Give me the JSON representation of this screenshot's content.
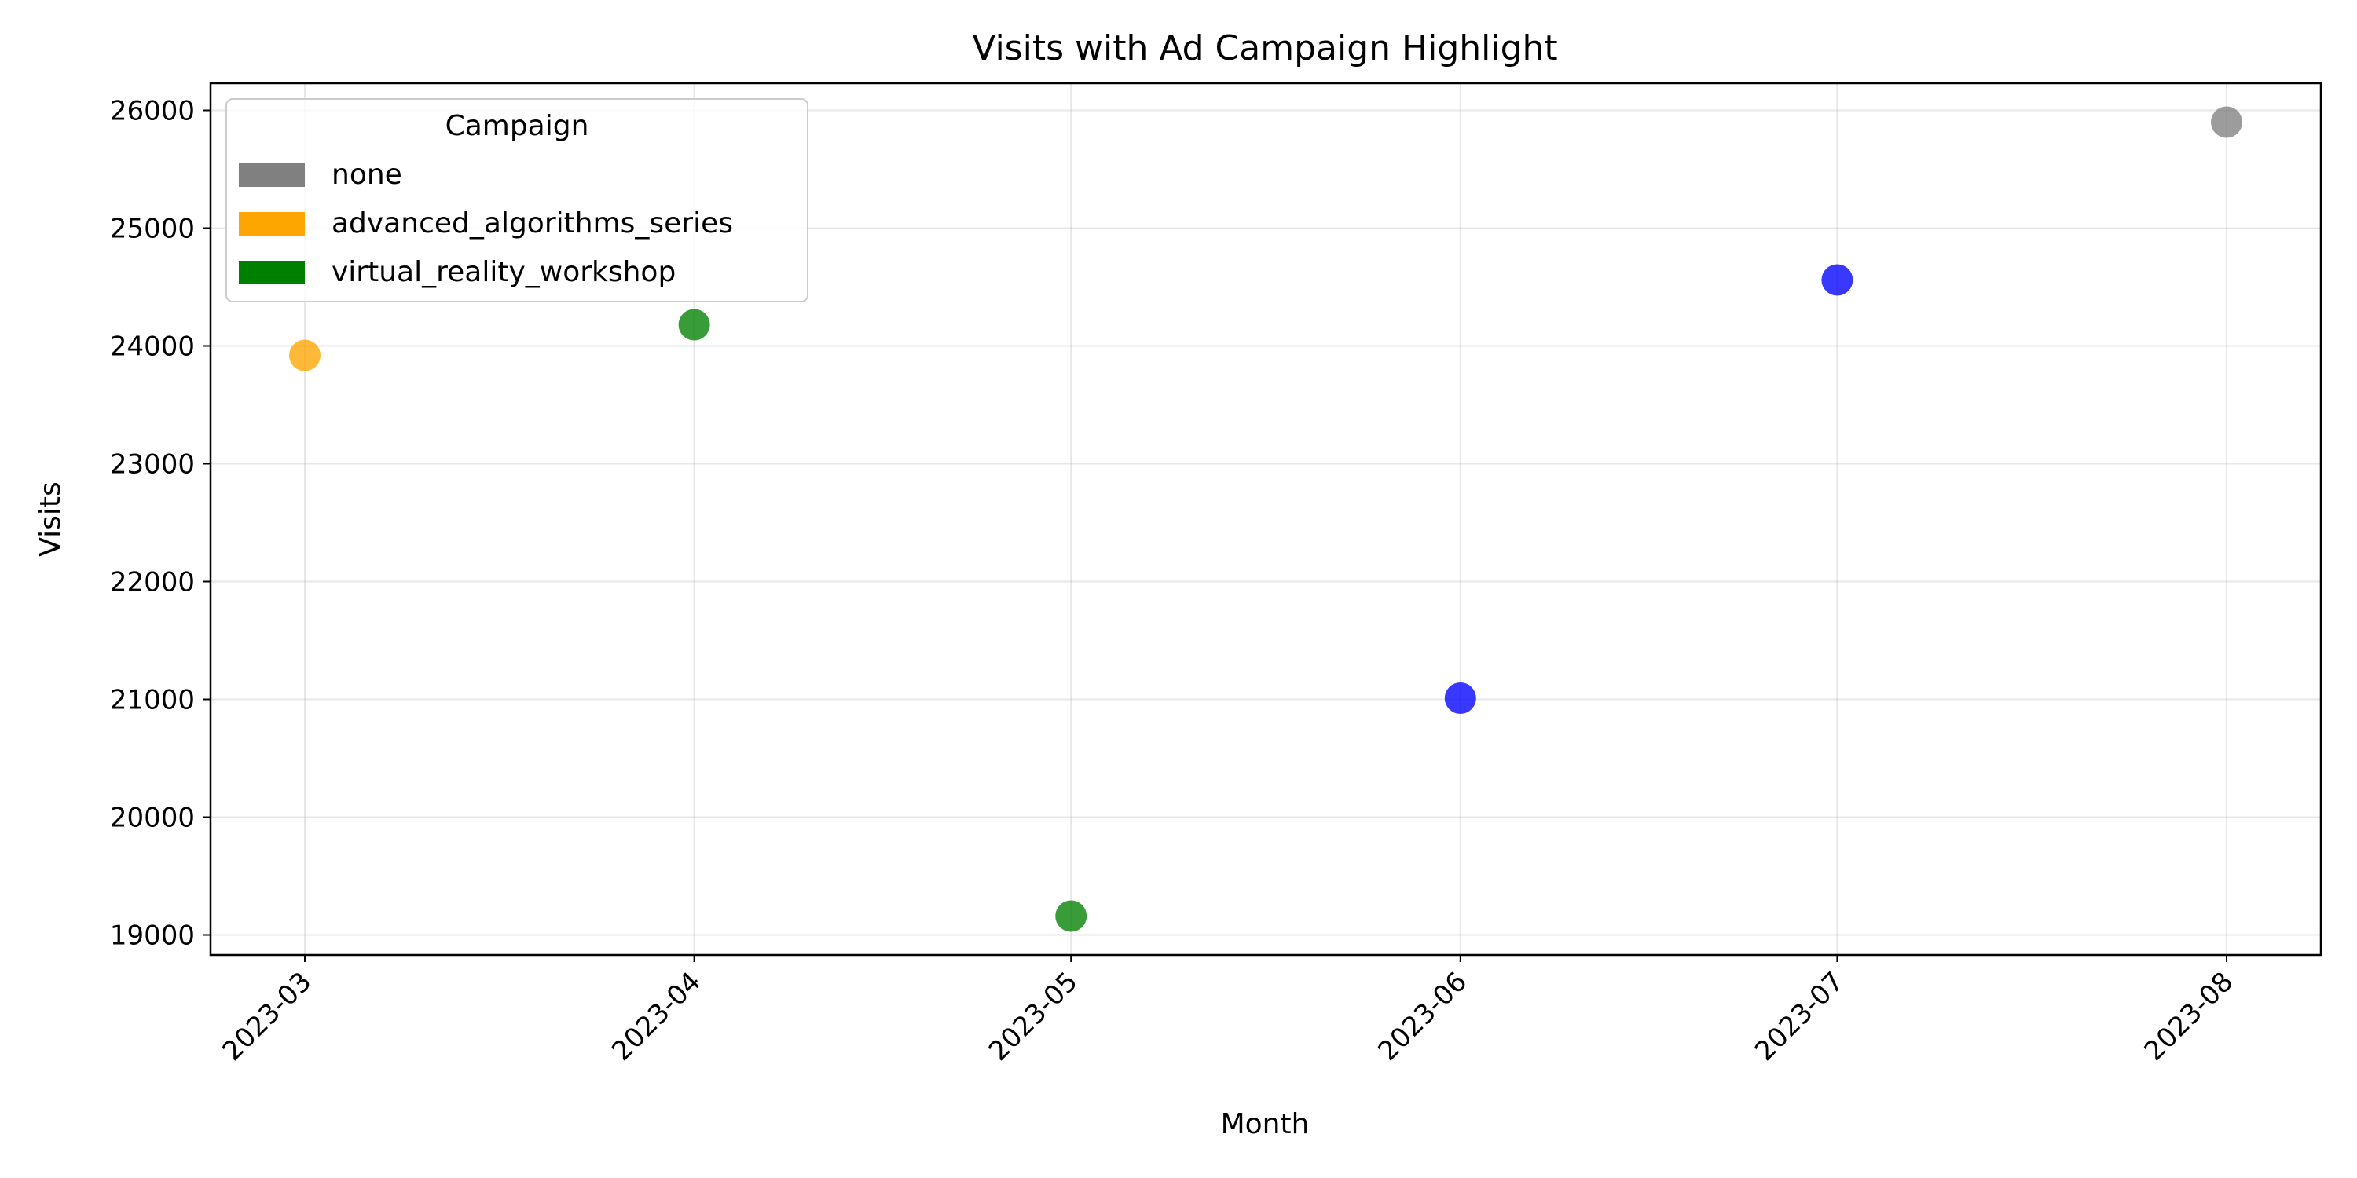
{
  "chart_data": {
    "type": "scatter",
    "title": "Visits with Ad Campaign Highlight",
    "xlabel": "Month",
    "ylabel": "Visits",
    "x_type": "date",
    "x": [
      "2023-03-01",
      "2023-04-01",
      "2023-05-01",
      "2023-06-01",
      "2023-07-01",
      "2023-08-01"
    ],
    "x_tick_labels": [
      "2023-03",
      "2023-04",
      "2023-05",
      "2023-06",
      "2023-07",
      "2023-08"
    ],
    "y": [
      23920,
      24180,
      19160,
      21010,
      24560,
      25900
    ],
    "point_colors": [
      "#ffa500",
      "#008000",
      "#008000",
      "#0000ff",
      "#0000ff",
      "#808080"
    ],
    "ylim": [
      18830,
      26230
    ],
    "y_ticks": [
      19000,
      20000,
      21000,
      22000,
      23000,
      24000,
      25000,
      26000
    ],
    "grid": true,
    "legend": {
      "title": "Campaign",
      "placement": "top-left",
      "entries": [
        {
          "label": "none",
          "color": "#808080"
        },
        {
          "label": "advanced_algorithms_series",
          "color": "#ffa500"
        },
        {
          "label": "virtual_reality_workshop",
          "color": "#008000"
        }
      ]
    }
  }
}
